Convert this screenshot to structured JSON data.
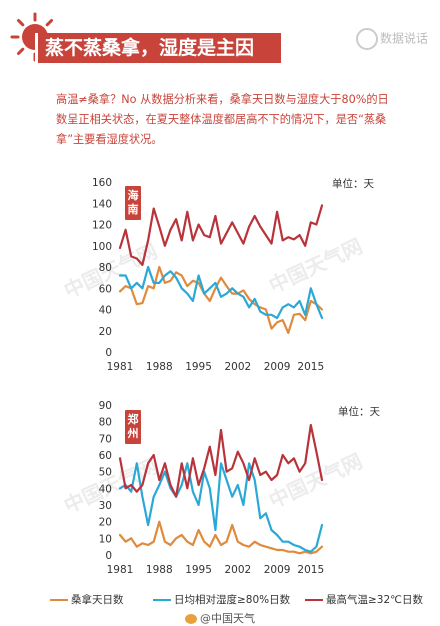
{
  "header": {
    "title": "蒸不蒸桑拿，湿度是主因",
    "brand": "数据说话"
  },
  "intro": "高温≠桑拿？No 从数据分析来看，桑拿天日数与湿度大于80%的日数呈正相关状态，在夏天整体温度都居高不下的情况下，是否“蒸桑拿”主要看湿度状况。",
  "footer": "@中国天气",
  "watermark": "中国天气网",
  "colors": {
    "accent": "#c8433a",
    "sauna": "#e08a3c",
    "humidity": "#2aa8d8",
    "hot": "#b8333a"
  },
  "chart_data": [
    {
      "type": "line",
      "region": "海南",
      "unit": "单位：天",
      "x": [
        1981,
        1982,
        1983,
        1984,
        1985,
        1986,
        1987,
        1988,
        1989,
        1990,
        1991,
        1992,
        1993,
        1994,
        1995,
        1996,
        1997,
        1998,
        1999,
        2000,
        2001,
        2002,
        2003,
        2004,
        2005,
        2006,
        2007,
        2008,
        2009,
        2010,
        2011,
        2012,
        2013,
        2014,
        2015,
        2016,
        2017
      ],
      "xticks": [
        1981,
        1988,
        1995,
        2002,
        2009,
        2015
      ],
      "ylim": [
        0,
        160
      ],
      "yticks": [
        0,
        20,
        40,
        60,
        80,
        100,
        120,
        140,
        160
      ],
      "series": [
        {
          "name": "桑拿天日数",
          "color": "#e08a3c",
          "values": [
            57,
            62,
            60,
            45,
            46,
            62,
            60,
            80,
            65,
            67,
            75,
            72,
            62,
            67,
            65,
            55,
            48,
            60,
            70,
            62,
            55,
            55,
            58,
            50,
            45,
            42,
            40,
            22,
            28,
            30,
            18,
            35,
            36,
            30,
            48,
            45,
            40
          ]
        },
        {
          "name": "日均相对湿度≥80%日数",
          "color": "#2aa8d8",
          "values": [
            72,
            72,
            60,
            65,
            60,
            80,
            65,
            65,
            72,
            76,
            70,
            60,
            55,
            48,
            72,
            55,
            60,
            65,
            52,
            55,
            60,
            55,
            52,
            42,
            50,
            38,
            35,
            35,
            32,
            42,
            45,
            42,
            48,
            35,
            60,
            45,
            32
          ]
        },
        {
          "name": "最高气温≥32℃日数",
          "color": "#b8333a",
          "values": [
            98,
            115,
            90,
            88,
            82,
            105,
            135,
            118,
            100,
            115,
            125,
            105,
            132,
            105,
            120,
            110,
            108,
            128,
            102,
            112,
            122,
            112,
            102,
            118,
            128,
            118,
            110,
            102,
            132,
            105,
            108,
            106,
            110,
            100,
            122,
            120,
            138
          ]
        }
      ]
    },
    {
      "type": "line",
      "region": "郑州",
      "unit": "单位：天",
      "x": [
        1981,
        1982,
        1983,
        1984,
        1985,
        1986,
        1987,
        1988,
        1989,
        1990,
        1991,
        1992,
        1993,
        1994,
        1995,
        1996,
        1997,
        1998,
        1999,
        2000,
        2001,
        2002,
        2003,
        2004,
        2005,
        2006,
        2007,
        2008,
        2009,
        2010,
        2011,
        2012,
        2013,
        2014,
        2015,
        2016,
        2017
      ],
      "xticks": [
        1981,
        1988,
        1995,
        2002,
        2009,
        2015
      ],
      "ylim": [
        0,
        90
      ],
      "yticks": [
        0,
        10,
        20,
        30,
        40,
        50,
        60,
        70,
        80,
        90
      ],
      "series": [
        {
          "name": "桑拿天日数",
          "color": "#e08a3c",
          "values": [
            12,
            8,
            10,
            5,
            7,
            6,
            8,
            20,
            8,
            6,
            10,
            12,
            8,
            6,
            15,
            8,
            5,
            12,
            6,
            8,
            18,
            8,
            6,
            5,
            8,
            6,
            5,
            4,
            3,
            3,
            2,
            2,
            1,
            2,
            1,
            2,
            5
          ]
        },
        {
          "name": "日均相对湿度≥80%日数",
          "color": "#2aa8d8",
          "values": [
            40,
            42,
            38,
            55,
            35,
            18,
            35,
            42,
            50,
            40,
            35,
            42,
            55,
            38,
            30,
            50,
            40,
            15,
            55,
            45,
            35,
            42,
            30,
            55,
            45,
            22,
            25,
            15,
            12,
            8,
            8,
            6,
            5,
            3,
            2,
            5,
            18
          ]
        },
        {
          "name": "最高气温≥32℃日数",
          "color": "#b8333a",
          "values": [
            58,
            40,
            42,
            38,
            42,
            55,
            60,
            45,
            55,
            42,
            35,
            55,
            40,
            58,
            42,
            52,
            65,
            48,
            75,
            50,
            52,
            62,
            55,
            45,
            58,
            48,
            50,
            45,
            48,
            60,
            55,
            58,
            50,
            55,
            78,
            62,
            45
          ]
        }
      ]
    }
  ]
}
